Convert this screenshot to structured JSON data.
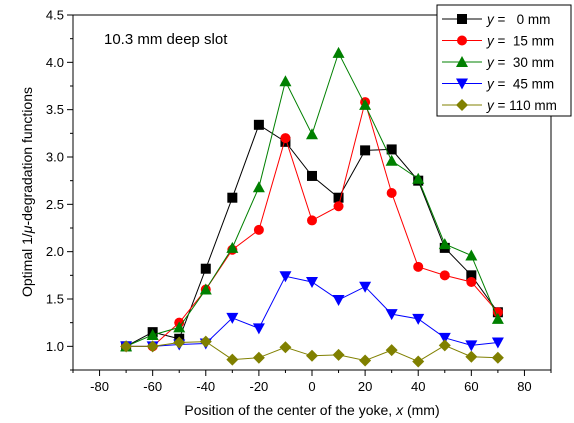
{
  "chart_data": {
    "type": "line",
    "annotation": "10.3 mm deep slot",
    "xlabel_prefix": "Position of the center of the yoke, ",
    "xlabel_var": "x",
    "xlabel_suffix": " (mm)",
    "ylabel_prefix": "Optimal 1/",
    "ylabel_var": "μ",
    "ylabel_suffix": "-degradation functions",
    "xlim": [
      -90,
      90
    ],
    "ylim": [
      0.75,
      4.5
    ],
    "x_ticks": [
      -80,
      -60,
      -40,
      -20,
      0,
      20,
      40,
      60,
      80
    ],
    "x_tick_labels": [
      "-80",
      "-60",
      "-40",
      "-20",
      "0",
      "20",
      "40",
      "60",
      "80"
    ],
    "y_ticks": [
      1.0,
      1.5,
      2.0,
      2.5,
      3.0,
      3.5,
      4.0,
      4.5
    ],
    "y_tick_labels": [
      "1.0",
      "1.5",
      "2.0",
      "2.5",
      "3.0",
      "3.5",
      "4.0",
      "4.5"
    ],
    "legend_position": "top-right",
    "x": [
      -70,
      -60,
      -50,
      -40,
      -30,
      -20,
      -10,
      0,
      10,
      20,
      30,
      40,
      50,
      60,
      70
    ],
    "series": [
      {
        "name_var": "y",
        "name_value": " =   0 mm",
        "color": "#000000",
        "marker": "square",
        "values": [
          1.0,
          1.15,
          1.08,
          1.82,
          2.57,
          3.34,
          3.16,
          2.8,
          2.57,
          3.07,
          3.08,
          2.75,
          2.04,
          1.75,
          1.36
        ]
      },
      {
        "name_var": "y",
        "name_value": " =  15 mm",
        "color": "#ff0000",
        "marker": "circle",
        "values": [
          1.0,
          1.0,
          1.25,
          1.6,
          2.02,
          2.23,
          3.2,
          2.33,
          2.48,
          3.58,
          2.62,
          1.84,
          1.75,
          1.68,
          1.36
        ]
      },
      {
        "name_var": "y",
        "name_value": " =  30 mm",
        "color": "#008000",
        "marker": "triangle-up",
        "values": [
          1.0,
          1.12,
          1.2,
          1.6,
          2.04,
          2.68,
          3.8,
          3.24,
          4.1,
          3.55,
          2.96,
          2.77,
          2.08,
          1.96,
          1.29
        ]
      },
      {
        "name_var": "y",
        "name_value": " =  45 mm",
        "color": "#0000ff",
        "marker": "triangle-down",
        "values": [
          1.0,
          1.0,
          1.02,
          1.03,
          1.3,
          1.19,
          1.74,
          1.68,
          1.49,
          1.63,
          1.34,
          1.29,
          1.09,
          1.01,
          1.04
        ]
      },
      {
        "name_var": "y",
        "name_value": " = 110 mm",
        "color": "#808000",
        "marker": "diamond",
        "values": [
          1.0,
          1.0,
          1.04,
          1.05,
          0.86,
          0.88,
          0.99,
          0.9,
          0.91,
          0.85,
          0.96,
          0.84,
          1.01,
          0.89,
          0.88
        ]
      }
    ]
  }
}
